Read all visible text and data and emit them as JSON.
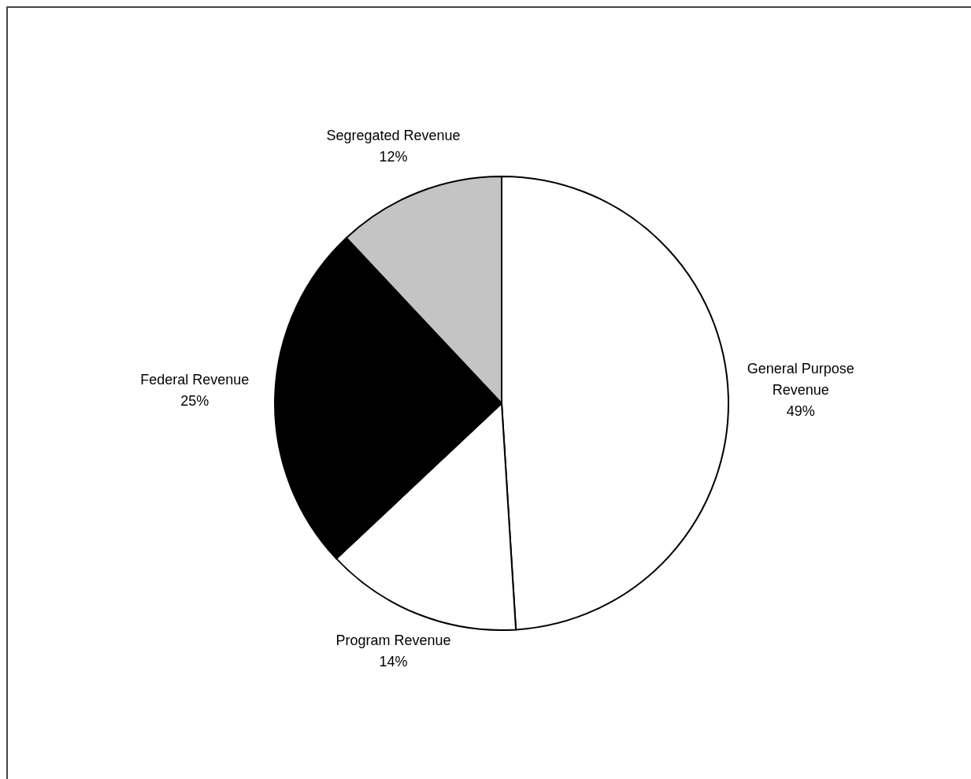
{
  "chart_data": {
    "type": "pie",
    "categories": [
      "General Purpose Revenue",
      "Program Revenue",
      "Federal Revenue",
      "Segregated Revenue"
    ],
    "values": [
      49,
      14,
      25,
      12
    ],
    "value_labels": [
      "49%",
      "14%",
      "25%",
      "12%"
    ],
    "colors": [
      "#ffffff",
      "#ffffff",
      "#000000",
      "#c4c4c4"
    ],
    "legend": false
  }
}
